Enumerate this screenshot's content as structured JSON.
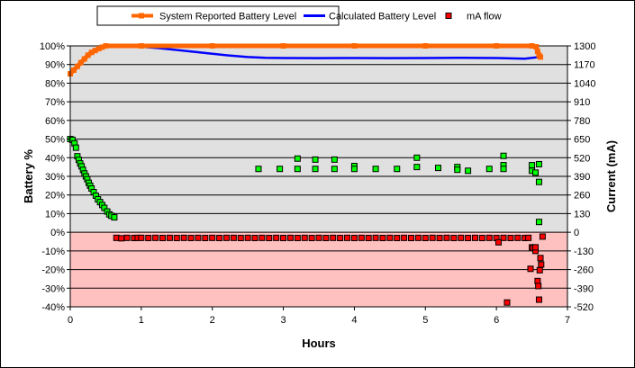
{
  "chart_data": {
    "type": "line+scatter",
    "legend": {
      "placement": "top",
      "entries": [
        "System Reported Battery Level",
        "Calculated Battery Level",
        "mA flow"
      ]
    },
    "xlabel": "Hours",
    "ylabel_left": "Battery %",
    "ylabel_right": "Current (mA)",
    "xlim": [
      0,
      7
    ],
    "ylim_left": [
      -40,
      100
    ],
    "ylim_right": [
      -520,
      1300
    ],
    "x_ticks": [
      "0",
      "1",
      "2",
      "3",
      "4",
      "5",
      "6",
      "7"
    ],
    "y_ticks_left": [
      "100%",
      "90%",
      "80%",
      "70%",
      "60%",
      "50%",
      "40%",
      "30%",
      "20%",
      "10%",
      "0%",
      "-10%",
      "-20%",
      "-30%",
      "-40%"
    ],
    "y_ticks_right": [
      "1300",
      "1170",
      "1040",
      "910",
      "780",
      "650",
      "520",
      "390",
      "260",
      "130",
      "0",
      "-130",
      "-260",
      "-390",
      "-520"
    ],
    "grid": true,
    "colors": {
      "system": "#ff6600",
      "calculated": "#0000ff",
      "positive_flow": "#00ff00",
      "negative_flow": "#ff0000",
      "plot_positive_bg": "#e0e0e0",
      "plot_negative_bg": "#ffc0c0"
    },
    "series": [
      {
        "name": "System Reported Battery Level",
        "axis": "left",
        "points": [
          [
            0,
            85
          ],
          [
            0.05,
            87
          ],
          [
            0.1,
            89
          ],
          [
            0.15,
            91
          ],
          [
            0.2,
            93
          ],
          [
            0.25,
            95
          ],
          [
            0.3,
            96.5
          ],
          [
            0.35,
            97.5
          ],
          [
            0.4,
            98.5
          ],
          [
            0.45,
            99.3
          ],
          [
            0.5,
            100
          ],
          [
            1,
            100
          ],
          [
            2,
            100
          ],
          [
            3,
            100
          ],
          [
            4,
            100
          ],
          [
            5,
            100
          ],
          [
            6,
            100
          ],
          [
            6.5,
            100
          ],
          [
            6.56,
            99.5
          ],
          [
            6.58,
            97
          ],
          [
            6.6,
            95
          ],
          [
            6.62,
            94
          ]
        ]
      },
      {
        "name": "Calculated Battery Level",
        "axis": "left",
        "points": [
          [
            0.85,
            100
          ],
          [
            1.0,
            99.5
          ],
          [
            1.25,
            98.8
          ],
          [
            1.5,
            97.8
          ],
          [
            1.75,
            96.8
          ],
          [
            2.0,
            95.8
          ],
          [
            2.25,
            94.8
          ],
          [
            2.5,
            94
          ],
          [
            2.75,
            93.6
          ],
          [
            3.0,
            93.5
          ],
          [
            3.5,
            93.4
          ],
          [
            4.0,
            93.5
          ],
          [
            4.5,
            93.4
          ],
          [
            5.0,
            93.5
          ],
          [
            5.5,
            93.6
          ],
          [
            6.0,
            93.5
          ],
          [
            6.4,
            93.1
          ],
          [
            6.55,
            93.8
          ],
          [
            6.6,
            94
          ]
        ]
      },
      {
        "name": "mA flow",
        "axis": "right",
        "points": [
          [
            0.0,
            650
          ],
          [
            0.03,
            645
          ],
          [
            0.06,
            620
          ],
          [
            0.08,
            590
          ],
          [
            0.1,
            530
          ],
          [
            0.12,
            505
          ],
          [
            0.14,
            480
          ],
          [
            0.16,
            460
          ],
          [
            0.18,
            435
          ],
          [
            0.2,
            410
          ],
          [
            0.22,
            390
          ],
          [
            0.24,
            370
          ],
          [
            0.26,
            345
          ],
          [
            0.28,
            325
          ],
          [
            0.3,
            305
          ],
          [
            0.33,
            280
          ],
          [
            0.36,
            255
          ],
          [
            0.39,
            230
          ],
          [
            0.42,
            210
          ],
          [
            0.45,
            190
          ],
          [
            0.48,
            170
          ],
          [
            0.52,
            145
          ],
          [
            0.55,
            125
          ],
          [
            0.58,
            115
          ],
          [
            0.62,
            104
          ],
          [
            2.65,
            442
          ],
          [
            2.95,
            442
          ],
          [
            3.2,
            514
          ],
          [
            3.2,
            442
          ],
          [
            3.45,
            507
          ],
          [
            3.45,
            442
          ],
          [
            3.72,
            507
          ],
          [
            3.72,
            442
          ],
          [
            4.0,
            462
          ],
          [
            4.0,
            442
          ],
          [
            4.3,
            442
          ],
          [
            4.6,
            442
          ],
          [
            4.88,
            520
          ],
          [
            4.88,
            455
          ],
          [
            5.18,
            449
          ],
          [
            5.45,
            455
          ],
          [
            5.45,
            436
          ],
          [
            5.6,
            429
          ],
          [
            5.9,
            442
          ],
          [
            6.1,
            533
          ],
          [
            6.1,
            468
          ],
          [
            6.1,
            442
          ],
          [
            6.5,
            468
          ],
          [
            6.5,
            429
          ],
          [
            6.55,
            416
          ],
          [
            6.6,
            475
          ],
          [
            6.6,
            351
          ],
          [
            6.6,
            72
          ],
          [
            0.65,
            -39
          ],
          [
            0.72,
            -42
          ],
          [
            0.8,
            -39
          ],
          [
            0.9,
            -40
          ],
          [
            0.95,
            -39
          ],
          [
            1.0,
            -39
          ],
          [
            1.1,
            -40
          ],
          [
            1.2,
            -39
          ],
          [
            1.3,
            -40
          ],
          [
            1.4,
            -39
          ],
          [
            1.5,
            -40
          ],
          [
            1.6,
            -39
          ],
          [
            1.7,
            -40
          ],
          [
            1.8,
            -39
          ],
          [
            1.9,
            -40
          ],
          [
            2.0,
            -39
          ],
          [
            2.1,
            -40
          ],
          [
            2.2,
            -39
          ],
          [
            2.3,
            -39
          ],
          [
            2.4,
            -40
          ],
          [
            2.5,
            -39
          ],
          [
            2.6,
            -40
          ],
          [
            2.7,
            -39
          ],
          [
            2.8,
            -40
          ],
          [
            2.9,
            -39
          ],
          [
            3.0,
            -40
          ],
          [
            3.1,
            -39
          ],
          [
            3.2,
            -40
          ],
          [
            3.3,
            -39
          ],
          [
            3.4,
            -40
          ],
          [
            3.5,
            -39
          ],
          [
            3.6,
            -40
          ],
          [
            3.7,
            -39
          ],
          [
            3.8,
            -40
          ],
          [
            3.9,
            -39
          ],
          [
            4.0,
            -40
          ],
          [
            4.1,
            -39
          ],
          [
            4.2,
            -40
          ],
          [
            4.3,
            -39
          ],
          [
            4.4,
            -40
          ],
          [
            4.5,
            -39
          ],
          [
            4.6,
            -40
          ],
          [
            4.7,
            -39
          ],
          [
            4.8,
            -40
          ],
          [
            4.9,
            -39
          ],
          [
            5.0,
            -40
          ],
          [
            5.1,
            -39
          ],
          [
            5.2,
            -40
          ],
          [
            5.3,
            -39
          ],
          [
            5.4,
            -40
          ],
          [
            5.5,
            -39
          ],
          [
            5.6,
            -40
          ],
          [
            5.7,
            -39
          ],
          [
            5.8,
            -40
          ],
          [
            5.9,
            -39
          ],
          [
            6.0,
            -40
          ],
          [
            6.1,
            -39
          ],
          [
            6.2,
            -40
          ],
          [
            6.3,
            -39
          ],
          [
            6.4,
            -40
          ],
          [
            6.45,
            -39
          ],
          [
            6.03,
            -70
          ],
          [
            6.15,
            -490
          ],
          [
            6.48,
            -255
          ],
          [
            6.5,
            -105
          ],
          [
            6.52,
            -110
          ],
          [
            6.55,
            -130
          ],
          [
            6.55,
            -105
          ],
          [
            6.58,
            -340
          ],
          [
            6.59,
            -375
          ],
          [
            6.6,
            -470
          ],
          [
            6.62,
            -180
          ],
          [
            6.63,
            -225
          ],
          [
            6.61,
            -265
          ],
          [
            6.65,
            -30
          ]
        ]
      }
    ]
  }
}
